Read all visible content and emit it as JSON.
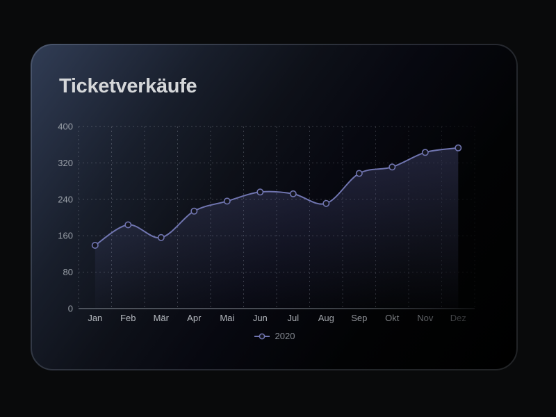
{
  "window": {
    "background": "#090a0b"
  },
  "card": {
    "title": "Ticketverkäufe",
    "background_from": "#313d55",
    "background_to": "#000000",
    "border_color": "rgba(210,222,240,0.16)"
  },
  "chart_data": {
    "type": "area",
    "title": "Ticketverkäufe",
    "categories": [
      "Jan",
      "Feb",
      "Mär",
      "Apr",
      "Mai",
      "Jun",
      "Jul",
      "Aug",
      "Sep",
      "Okt",
      "Nov",
      "Dez"
    ],
    "series": [
      {
        "name": "2020",
        "values": [
          139,
          184,
          156,
          214,
          236,
          256,
          252,
          231,
          297,
          311,
          343,
          353
        ]
      }
    ],
    "ylim": [
      0,
      400
    ],
    "yticks": [
      0,
      80,
      160,
      240,
      320,
      400
    ],
    "grid": true,
    "grid_style": "dashed",
    "legend_position": "bottom",
    "fade_right": true,
    "colors": {
      "line": "#7075b0",
      "point_fill": "#13141d",
      "area_top": "rgba(112,117,188,0.26)",
      "area_bottom": "rgba(112,117,188,0.02)",
      "grid": "rgba(156,162,172,0.34)",
      "axis": "rgba(160,166,176,0.42)",
      "y_tick_label": "#9aa0a8",
      "x_tick_label": "#b6bac0",
      "legend_label": "#858a92",
      "title": "#d5d7d9"
    }
  }
}
